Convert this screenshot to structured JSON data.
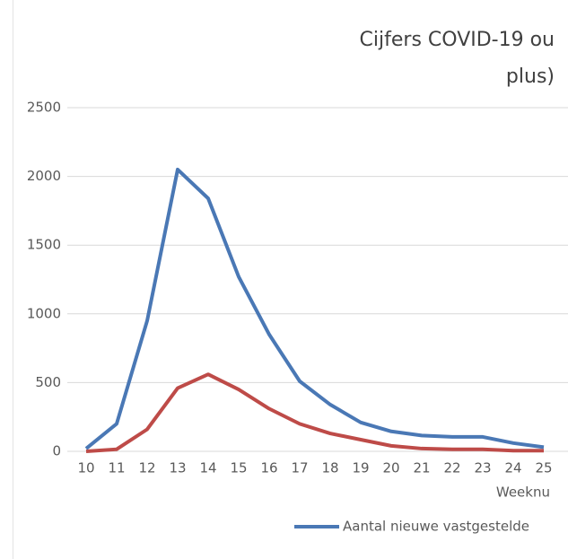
{
  "chart_data": {
    "type": "line",
    "title": [
      "Cijfers COVID-19 ou",
      "plus)"
    ],
    "x_label": "Weeknu",
    "categories": [
      "10",
      "11",
      "12",
      "13",
      "14",
      "15",
      "16",
      "17",
      "18",
      "19",
      "20",
      "21",
      "22",
      "23",
      "24",
      "25"
    ],
    "series": [
      {
        "name": "Aantal nieuwe vastgestelde",
        "color": "#4a78b5",
        "values": [
          20,
          200,
          950,
          2050,
          1840,
          1270,
          850,
          510,
          340,
          210,
          145,
          115,
          105,
          105,
          60,
          30
        ]
      },
      {
        "color": "#be4b48",
        "values": [
          0,
          15,
          160,
          460,
          560,
          450,
          310,
          200,
          130,
          85,
          40,
          20,
          15,
          15,
          5,
          5
        ]
      }
    ],
    "ylim": [
      0,
      2500
    ],
    "yticks": [
      0,
      500,
      1000,
      1500,
      2000,
      2500
    ],
    "grid": true,
    "legend": "bottom"
  }
}
